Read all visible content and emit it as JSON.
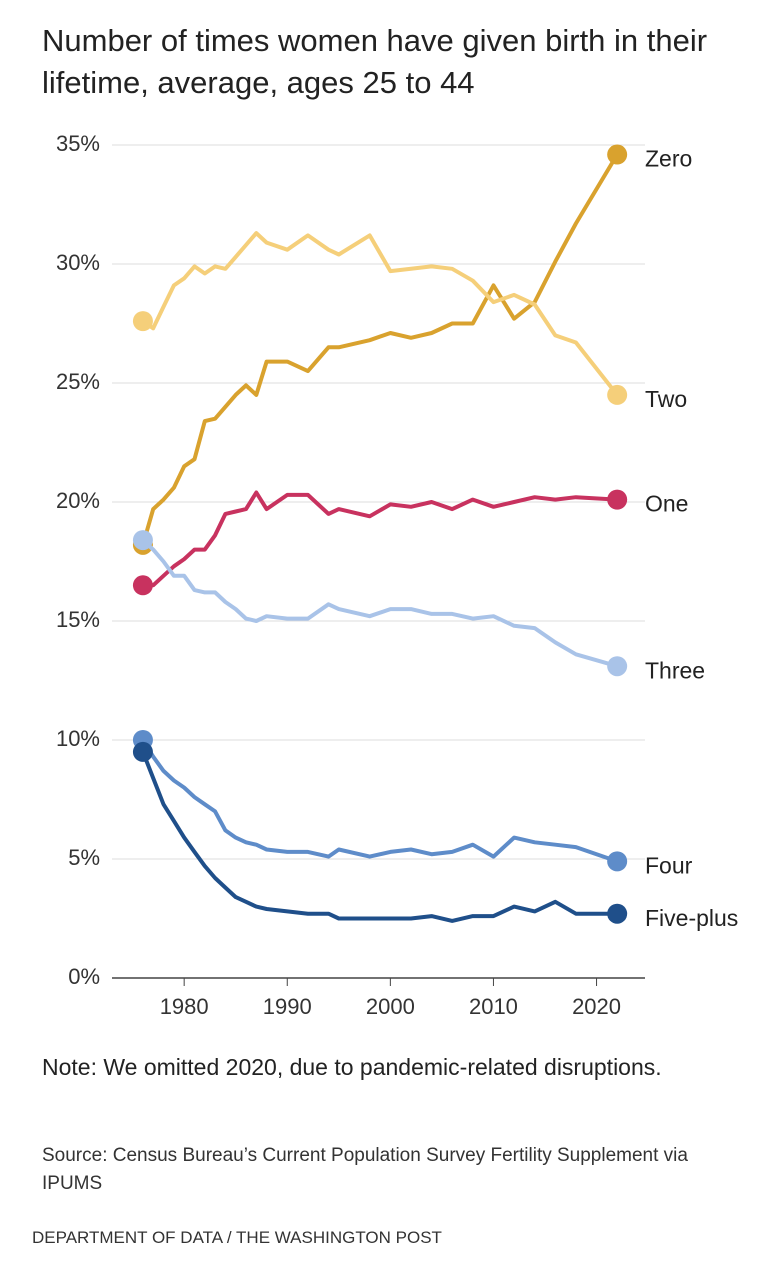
{
  "chart_data": {
    "type": "line",
    "title": "Number of times women have given birth in their lifetime, average, ages 25 to 44",
    "note": "Note: We omitted 2020, due to pandemic-related disruptions.",
    "source": "Source: Census Bureau’s Current Population Survey Fertility Supplement via IPUMS",
    "credit": "DEPARTMENT OF DATA / THE WASHINGTON POST",
    "x": [
      1976,
      1977,
      1978,
      1979,
      1980,
      1981,
      1982,
      1983,
      1984,
      1985,
      1986,
      1987,
      1988,
      1990,
      1992,
      1994,
      1995,
      1998,
      2000,
      2002,
      2004,
      2006,
      2008,
      2010,
      2012,
      2014,
      2016,
      2018,
      2022
    ],
    "series": [
      {
        "name": "Zero",
        "color": "#d9a22e",
        "values": [
          18.2,
          19.7,
          20.1,
          20.6,
          21.5,
          21.8,
          23.4,
          23.5,
          24.0,
          24.5,
          24.9,
          24.5,
          25.9,
          25.9,
          25.5,
          26.5,
          26.5,
          26.8,
          27.1,
          26.9,
          27.1,
          27.5,
          27.5,
          29.1,
          27.7,
          28.4,
          30.1,
          31.7,
          34.6
        ]
      },
      {
        "name": "Two",
        "color": "#f5cf7a",
        "values": [
          27.6,
          27.3,
          28.2,
          29.1,
          29.4,
          29.9,
          29.6,
          29.9,
          29.8,
          30.3,
          30.8,
          31.3,
          30.9,
          30.6,
          31.2,
          30.6,
          30.4,
          31.2,
          29.7,
          29.8,
          29.9,
          29.8,
          29.3,
          28.4,
          28.7,
          28.3,
          27.0,
          26.7,
          24.5
        ]
      },
      {
        "name": "One",
        "color": "#c8325f",
        "values": [
          16.5,
          16.5,
          16.9,
          17.3,
          17.6,
          18.0,
          18.0,
          18.6,
          19.5,
          19.6,
          19.7,
          20.4,
          19.7,
          20.3,
          20.3,
          19.5,
          19.7,
          19.4,
          19.9,
          19.8,
          20.0,
          19.7,
          20.1,
          19.8,
          20.0,
          20.2,
          20.1,
          20.2,
          20.1
        ]
      },
      {
        "name": "Three",
        "color": "#a9c3e8",
        "values": [
          18.4,
          18.0,
          17.5,
          16.9,
          16.9,
          16.3,
          16.2,
          16.2,
          15.8,
          15.5,
          15.1,
          15.0,
          15.2,
          15.1,
          15.1,
          15.7,
          15.5,
          15.2,
          15.5,
          15.5,
          15.3,
          15.3,
          15.1,
          15.2,
          14.8,
          14.7,
          14.1,
          13.6,
          13.1
        ]
      },
      {
        "name": "Four",
        "color": "#5e8cc9",
        "values": [
          10.0,
          9.3,
          8.7,
          8.3,
          8.0,
          7.6,
          7.3,
          7.0,
          6.2,
          5.9,
          5.7,
          5.6,
          5.4,
          5.3,
          5.3,
          5.1,
          5.4,
          5.1,
          5.3,
          5.4,
          5.2,
          5.3,
          5.6,
          5.1,
          5.9,
          5.7,
          5.6,
          5.5,
          4.9
        ]
      },
      {
        "name": "Five-plus",
        "color": "#1f4f8a",
        "values": [
          9.5,
          8.4,
          7.3,
          6.6,
          5.9,
          5.3,
          4.7,
          4.2,
          3.8,
          3.4,
          3.2,
          3.0,
          2.9,
          2.8,
          2.7,
          2.7,
          2.5,
          2.5,
          2.5,
          2.5,
          2.6,
          2.4,
          2.6,
          2.6,
          3.0,
          2.8,
          3.2,
          2.7,
          2.7
        ]
      }
    ],
    "xlim": [
      1973,
      2024.7
    ],
    "xticks": [
      1980,
      1990,
      2000,
      2010,
      2020
    ],
    "ylim": [
      0,
      35
    ],
    "yticks": [
      {
        "value": 0,
        "label": "0%"
      },
      {
        "value": 5,
        "label": "5%"
      },
      {
        "value": 10,
        "label": "10%"
      },
      {
        "value": 15,
        "label": "15%"
      },
      {
        "value": 20,
        "label": "20%"
      },
      {
        "value": 25,
        "label": "25%"
      },
      {
        "value": 30,
        "label": "30%"
      },
      {
        "value": 35,
        "label": "35%"
      }
    ],
    "grid": true
  }
}
